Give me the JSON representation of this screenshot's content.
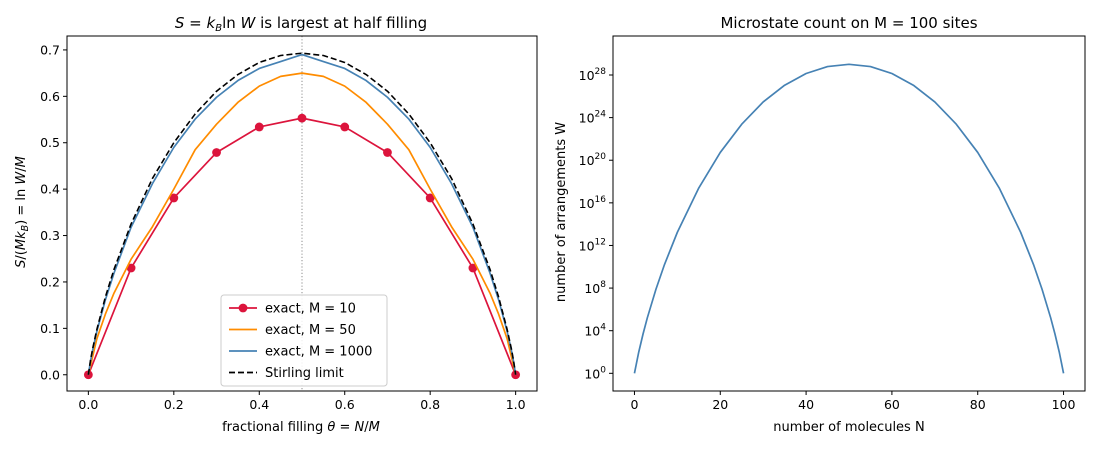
{
  "chart_data": [
    {
      "type": "line",
      "title": "S = k_B ln W is largest at half filling",
      "xlabel": "fractional filling θ = N/M",
      "ylabel": "S/(Mk_B) = ln W/M",
      "xlim": [
        -0.05,
        1.05
      ],
      "ylim": [
        -0.035,
        0.73
      ],
      "xticks": [
        "0.0",
        "0.2",
        "0.4",
        "0.6",
        "0.8",
        "1.0"
      ],
      "yticks": [
        "0.0",
        "0.1",
        "0.2",
        "0.3",
        "0.4",
        "0.5",
        "0.6",
        "0.7"
      ],
      "vline_x": 0.5,
      "legend_position": "lower center",
      "series": [
        {
          "name": "exact, M = 10",
          "color": "#dc143c",
          "marker": "circle",
          "x": [
            0.0,
            0.1,
            0.2,
            0.3,
            0.4,
            0.5,
            0.6,
            0.7,
            0.8,
            0.9,
            1.0
          ],
          "y": [
            0.0,
            0.23,
            0.381,
            0.479,
            0.534,
            0.553,
            0.534,
            0.479,
            0.381,
            0.23,
            0.0
          ]
        },
        {
          "name": "exact, M = 50",
          "color": "#ff8c00",
          "x": [
            0.0,
            0.02,
            0.04,
            0.06,
            0.1,
            0.15,
            0.2,
            0.25,
            0.3,
            0.35,
            0.4,
            0.45,
            0.5,
            0.55,
            0.6,
            0.65,
            0.7,
            0.75,
            0.8,
            0.85,
            0.9,
            0.94,
            0.96,
            0.98,
            1.0
          ],
          "y": [
            0.0,
            0.078,
            0.131,
            0.176,
            0.249,
            0.319,
            0.4,
            0.485,
            0.54,
            0.587,
            0.622,
            0.643,
            0.65,
            0.643,
            0.622,
            0.587,
            0.54,
            0.485,
            0.4,
            0.319,
            0.249,
            0.176,
            0.131,
            0.078,
            0.0
          ]
        },
        {
          "name": "exact, M = 1000",
          "color": "#4682b4",
          "x": [
            0.0,
            0.005,
            0.01,
            0.02,
            0.04,
            0.06,
            0.1,
            0.15,
            0.2,
            0.25,
            0.3,
            0.35,
            0.4,
            0.45,
            0.5,
            0.55,
            0.6,
            0.65,
            0.7,
            0.75,
            0.8,
            0.85,
            0.9,
            0.94,
            0.96,
            0.98,
            0.99,
            0.995,
            1.0
          ],
          "y": [
            0.0,
            0.029,
            0.053,
            0.094,
            0.162,
            0.219,
            0.318,
            0.412,
            0.49,
            0.551,
            0.598,
            0.634,
            0.66,
            0.675,
            0.69,
            0.675,
            0.66,
            0.634,
            0.598,
            0.551,
            0.49,
            0.412,
            0.318,
            0.219,
            0.162,
            0.094,
            0.053,
            0.029,
            0.0
          ]
        },
        {
          "name": "Stirling limit",
          "color": "#000000",
          "dashed": true,
          "x": [
            0.0,
            0.005,
            0.01,
            0.02,
            0.04,
            0.06,
            0.1,
            0.15,
            0.2,
            0.25,
            0.3,
            0.35,
            0.4,
            0.45,
            0.5,
            0.55,
            0.6,
            0.65,
            0.7,
            0.75,
            0.8,
            0.85,
            0.9,
            0.94,
            0.96,
            0.98,
            0.99,
            0.995,
            1.0
          ],
          "y": [
            0.0,
            0.031,
            0.056,
            0.098,
            0.168,
            0.227,
            0.325,
            0.423,
            0.5,
            0.562,
            0.611,
            0.647,
            0.673,
            0.688,
            0.693,
            0.688,
            0.673,
            0.647,
            0.611,
            0.562,
            0.5,
            0.423,
            0.325,
            0.227,
            0.168,
            0.098,
            0.056,
            0.031,
            0.0
          ]
        }
      ]
    },
    {
      "type": "line",
      "title": "Microstate count on M = 100 sites",
      "xlabel": "number of molecules N",
      "ylabel": "number of arrangements W",
      "yscale": "log",
      "xlim": [
        -5,
        105
      ],
      "xticks": [
        "0",
        "20",
        "40",
        "60",
        "80",
        "100"
      ],
      "ytick_exponents": [
        "0",
        "4",
        "8",
        "12",
        "16",
        "20",
        "24",
        "28"
      ],
      "ylim_log10": [
        -1.66,
        31.66
      ],
      "series": [
        {
          "name": "",
          "color": "#4682b4",
          "x": [
            0,
            1,
            2,
            3,
            5,
            7,
            10,
            15,
            20,
            25,
            30,
            35,
            40,
            45,
            50,
            55,
            60,
            65,
            70,
            75,
            80,
            85,
            90,
            93,
            95,
            97,
            98,
            99,
            100
          ],
          "y_log10": [
            0.0,
            2.0,
            3.69,
            5.21,
            7.88,
            10.21,
            13.24,
            17.4,
            20.73,
            23.38,
            25.47,
            27.04,
            28.14,
            28.79,
            29.0,
            28.79,
            28.14,
            27.04,
            25.47,
            23.38,
            20.73,
            17.4,
            13.24,
            10.21,
            7.88,
            5.21,
            3.69,
            2.0,
            0.0
          ]
        }
      ]
    }
  ]
}
